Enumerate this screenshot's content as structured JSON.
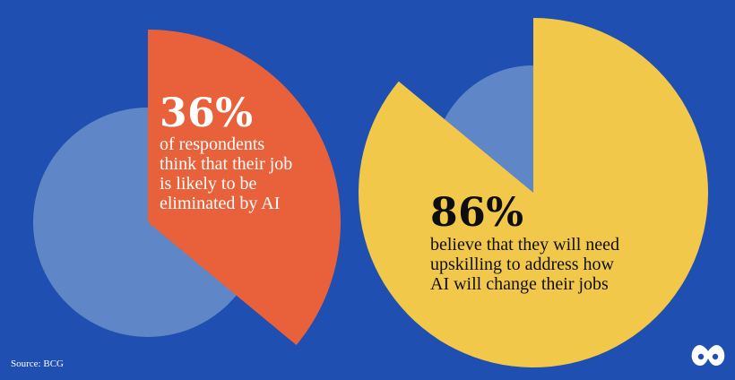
{
  "colors": {
    "background": "#1f4fb0",
    "ghost_circle": "#5f86c6",
    "left_slice": "#e8613a",
    "right_slice": "#f2c84b",
    "text_light": "#ffffff",
    "text_dark": "#0e0e0e"
  },
  "chart_data": [
    {
      "type": "pie",
      "values": [
        36,
        64
      ],
      "highlighted_value": 36,
      "highlight_color": "#e8613a",
      "stat_label": "36%",
      "description": "of respondents\nthink that their job\nis likely to be\neliminated by AI"
    },
    {
      "type": "pie",
      "values": [
        86,
        14
      ],
      "highlighted_value": 86,
      "highlight_color": "#f2c84b",
      "stat_label": "86%",
      "description": "believe that they will need\nupskilling to address how\nAI will change their jobs"
    }
  ],
  "source": "Source: BCG",
  "logo": {
    "icon": "visual-capitalist-logo-icon"
  }
}
